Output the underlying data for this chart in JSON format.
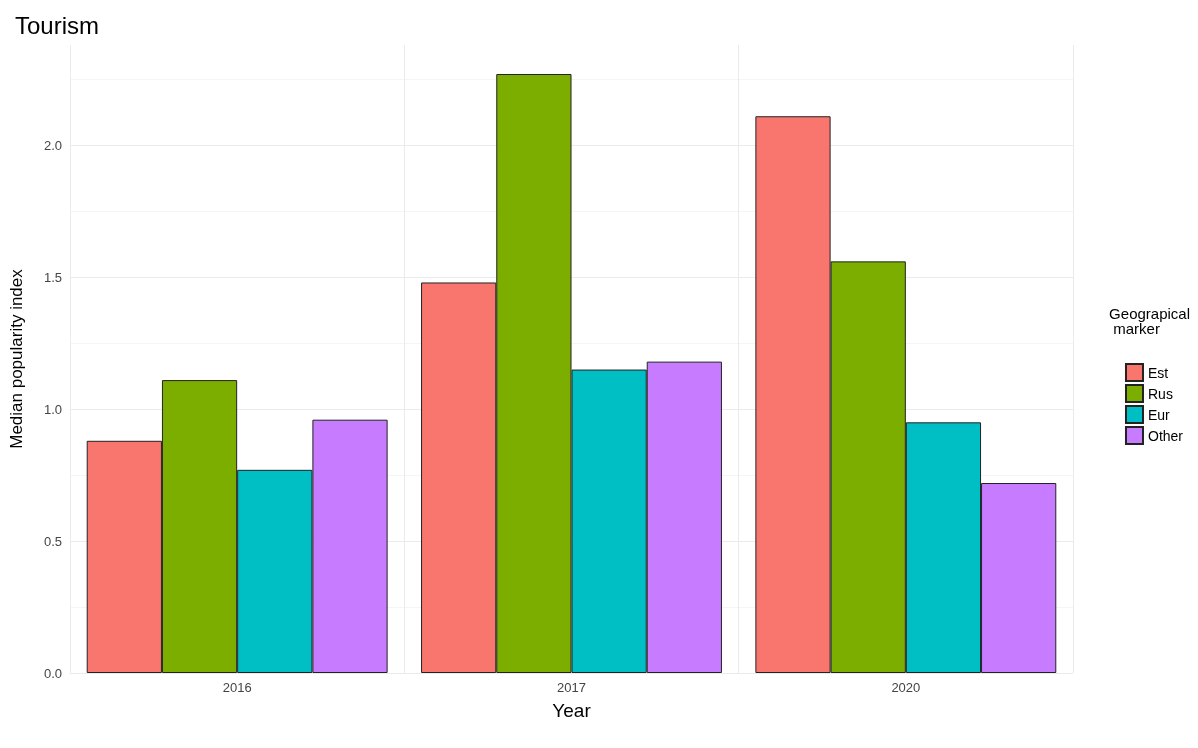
{
  "chart_data": {
    "type": "bar",
    "title": "Tourism",
    "xlabel": "Year",
    "ylabel": "Median popularity index",
    "legend_title": "Geograpical\n marker",
    "categories": [
      "2016",
      "2017",
      "2020"
    ],
    "series": [
      {
        "name": "Est",
        "color": "#f8766d",
        "values": [
          0.88,
          1.48,
          2.11
        ]
      },
      {
        "name": "Rus",
        "color": "#7cae00",
        "values": [
          1.11,
          2.27,
          1.56
        ]
      },
      {
        "name": "Eur",
        "color": "#00bfc4",
        "values": [
          0.77,
          1.15,
          0.95
        ]
      },
      {
        "name": "Other",
        "color": "#c77cff",
        "values": [
          0.96,
          1.18,
          0.72
        ]
      }
    ],
    "ylim": [
      0,
      2.38
    ],
    "yticks": [
      {
        "value": 0,
        "label": "0.0"
      },
      {
        "value": 0.5,
        "label": "0.5"
      },
      {
        "value": 1,
        "label": "1.0"
      },
      {
        "value": 1.5,
        "label": "1.5"
      },
      {
        "value": 2,
        "label": "2.0"
      }
    ],
    "grid": true,
    "legend": "right"
  }
}
